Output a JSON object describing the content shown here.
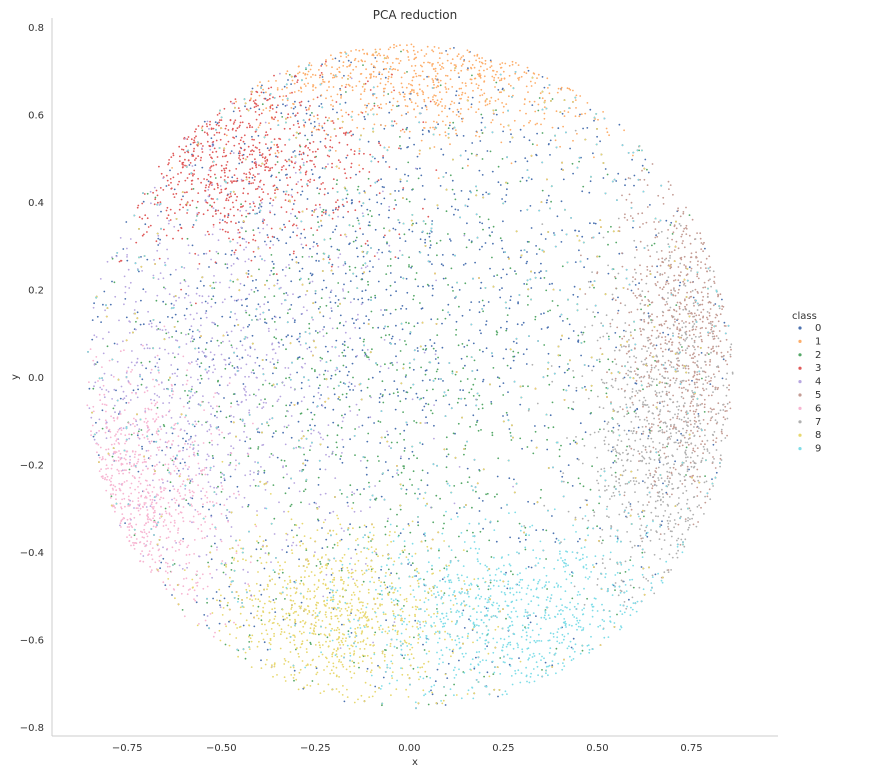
{
  "chart_data": {
    "type": "scatter",
    "title": "PCA reduction",
    "xlabel": "x",
    "ylabel": "y",
    "xlim": [
      -0.95,
      0.98
    ],
    "ylim": [
      -0.82,
      0.82
    ],
    "xticks": [
      -0.75,
      -0.5,
      -0.25,
      0.0,
      0.25,
      0.5,
      0.75
    ],
    "yticks": [
      -0.8,
      -0.6,
      -0.4,
      -0.2,
      0.0,
      0.2,
      0.4,
      0.6,
      0.8
    ],
    "xtick_labels": [
      "−0.75",
      "−0.50",
      "−0.25",
      "0.00",
      "0.25",
      "0.50",
      "0.75"
    ],
    "ytick_labels": [
      "−0.8",
      "−0.6",
      "−0.4",
      "−0.2",
      "0.0",
      "0.2",
      "0.4",
      "0.6",
      "0.8"
    ],
    "grid": false,
    "legend": {
      "title": "class",
      "placement": "right",
      "entries": [
        "0",
        "1",
        "2",
        "3",
        "4",
        "5",
        "6",
        "7",
        "8",
        "9"
      ]
    },
    "series": [
      {
        "name": "0",
        "color": "#4c72b0",
        "center": [
          -0.15,
          0.25
        ],
        "spread": [
          0.4,
          0.35
        ]
      },
      {
        "name": "1",
        "color": "#fdae6b",
        "center": [
          0.05,
          0.7
        ],
        "spread": [
          0.3,
          0.08
        ]
      },
      {
        "name": "2",
        "color": "#55a868",
        "center": [
          -0.05,
          -0.05
        ],
        "spread": [
          0.4,
          0.35
        ]
      },
      {
        "name": "3",
        "color": "#e05a5a",
        "center": [
          -0.5,
          0.5
        ],
        "spread": [
          0.2,
          0.1
        ]
      },
      {
        "name": "4",
        "color": "#b8a7e0",
        "center": [
          -0.55,
          0.0
        ],
        "spread": [
          0.25,
          0.25
        ]
      },
      {
        "name": "5",
        "color": "#c49c94",
        "center": [
          0.75,
          0.1
        ],
        "spread": [
          0.1,
          0.2
        ]
      },
      {
        "name": "6",
        "color": "#f7b6d2",
        "center": [
          -0.75,
          -0.3
        ],
        "spread": [
          0.12,
          0.15
        ]
      },
      {
        "name": "7",
        "color": "#b0b0b0",
        "center": [
          0.68,
          -0.15
        ],
        "spread": [
          0.12,
          0.2
        ]
      },
      {
        "name": "8",
        "color": "#e8d870",
        "center": [
          -0.2,
          -0.55
        ],
        "spread": [
          0.15,
          0.1
        ]
      },
      {
        "name": "9",
        "color": "#7fdde8",
        "center": [
          0.3,
          -0.55
        ],
        "spread": [
          0.25,
          0.1
        ]
      }
    ],
    "points_per_series": 1400,
    "cloud_radius": [
      0.86,
      0.76
    ],
    "cloud_center": [
      0.0,
      0.0
    ]
  }
}
